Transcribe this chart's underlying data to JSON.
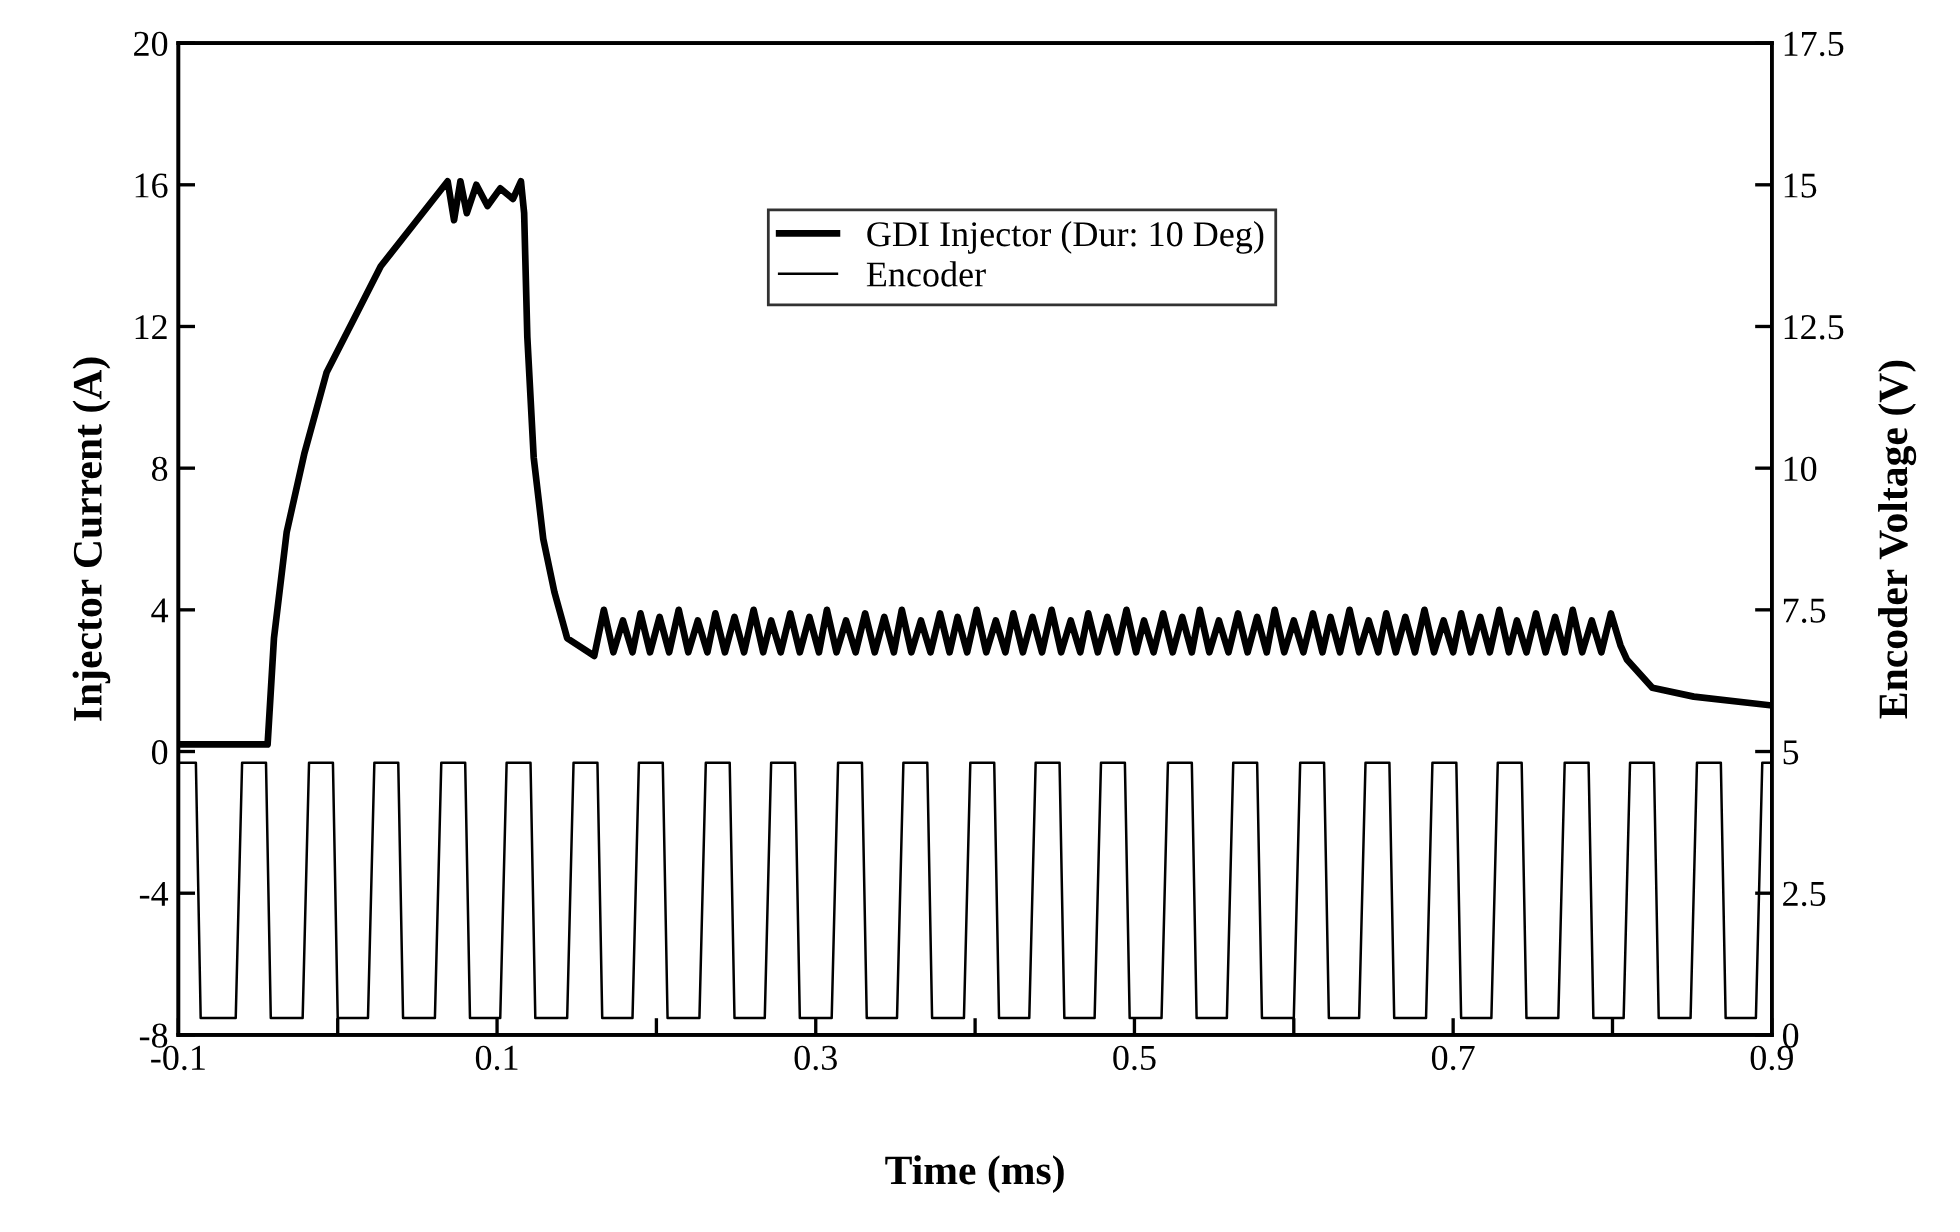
{
  "chart_data": {
    "type": "line",
    "xlabel": "Time (ms)",
    "ylabel": "Injector Current (A)",
    "y2label": "Encoder Voltage (V)",
    "xlim": [
      -0.1,
      0.9
    ],
    "xticks": [
      -0.1,
      {
        "value": 0,
        "label": null
      },
      0.1,
      {
        "value": 0.2,
        "label": null
      },
      0.3,
      {
        "value": 0.4,
        "label": null
      },
      0.5,
      {
        "value": 0.6,
        "label": null
      },
      0.7,
      {
        "value": 0.8,
        "label": null
      },
      0.9
    ],
    "ylim": [
      -8,
      20
    ],
    "yticks": [
      -8,
      -4,
      0,
      4,
      8,
      12,
      16,
      20
    ],
    "y2lim": [
      0,
      17.5
    ],
    "y2ticks": [
      0,
      2.5,
      5,
      7.5,
      10,
      12.5,
      15,
      17.5
    ],
    "grid": false,
    "legend": "top right",
    "line_style": "solid",
    "marker": "none",
    "series": [
      {
        "name": "GDI Injector (Dur: 10 Deg)",
        "color": "#000000",
        "axis": "y",
        "x": [
          -0.1,
          -0.044,
          -0.04,
          -0.032,
          -0.021,
          -0.007,
          0.01,
          0.027,
          0.048,
          0.069,
          0.073,
          0.077,
          0.081,
          0.087,
          0.094,
          0.102,
          0.11,
          0.115,
          0.117,
          0.119,
          0.123,
          0.129,
          0.136,
          0.144,
          0.161,
          0.167,
          0.173,
          0.179,
          0.185,
          0.19,
          0.196,
          0.202,
          0.208,
          0.214,
          0.22,
          0.226,
          0.232,
          0.237,
          0.243,
          0.249,
          0.255,
          0.261,
          0.267,
          0.272,
          0.278,
          0.284,
          0.29,
          0.296,
          0.302,
          0.307,
          0.313,
          0.319,
          0.325,
          0.331,
          0.337,
          0.343,
          0.349,
          0.354,
          0.36,
          0.366,
          0.372,
          0.378,
          0.384,
          0.389,
          0.395,
          0.401,
          0.407,
          0.413,
          0.419,
          0.424,
          0.43,
          0.436,
          0.442,
          0.448,
          0.454,
          0.46,
          0.466,
          0.471,
          0.477,
          0.483,
          0.489,
          0.495,
          0.501,
          0.506,
          0.512,
          0.518,
          0.524,
          0.53,
          0.536,
          0.541,
          0.547,
          0.553,
          0.559,
          0.565,
          0.571,
          0.577,
          0.583,
          0.588,
          0.594,
          0.6,
          0.606,
          0.612,
          0.618,
          0.623,
          0.629,
          0.635,
          0.641,
          0.647,
          0.653,
          0.658,
          0.664,
          0.67,
          0.676,
          0.682,
          0.688,
          0.694,
          0.7,
          0.705,
          0.711,
          0.717,
          0.723,
          0.729,
          0.735,
          0.74,
          0.746,
          0.752,
          0.758,
          0.764,
          0.77,
          0.775,
          0.781,
          0.787,
          0.793,
          0.799,
          0.805,
          0.809,
          0.825,
          0.851,
          0.9
        ],
        "values": [
          0.2,
          0.2,
          3.2,
          6.2,
          8.4,
          10.7,
          12.2,
          13.7,
          14.9,
          16.1,
          15.0,
          16.1,
          15.2,
          16.0,
          15.4,
          15.9,
          15.6,
          16.1,
          15.2,
          11.7,
          8.3,
          6.0,
          4.5,
          3.2,
          2.7,
          4.0,
          2.8,
          3.7,
          2.8,
          3.9,
          2.8,
          3.8,
          2.8,
          4.0,
          2.8,
          3.7,
          2.8,
          3.9,
          2.8,
          3.8,
          2.8,
          4.0,
          2.8,
          3.7,
          2.8,
          3.9,
          2.8,
          3.8,
          2.8,
          4.0,
          2.8,
          3.7,
          2.8,
          3.9,
          2.8,
          3.8,
          2.8,
          4.0,
          2.8,
          3.7,
          2.8,
          3.9,
          2.8,
          3.8,
          2.8,
          4.0,
          2.8,
          3.7,
          2.8,
          3.9,
          2.8,
          3.8,
          2.8,
          4.0,
          2.8,
          3.7,
          2.8,
          3.9,
          2.8,
          3.8,
          2.8,
          4.0,
          2.8,
          3.7,
          2.8,
          3.9,
          2.8,
          3.8,
          2.8,
          4.0,
          2.8,
          3.7,
          2.8,
          3.9,
          2.8,
          3.8,
          2.8,
          4.0,
          2.8,
          3.7,
          2.8,
          3.9,
          2.8,
          3.8,
          2.8,
          4.0,
          2.8,
          3.7,
          2.8,
          3.9,
          2.8,
          3.8,
          2.8,
          4.0,
          2.8,
          3.7,
          2.8,
          3.9,
          2.8,
          3.8,
          2.8,
          4.0,
          2.8,
          3.7,
          2.8,
          3.9,
          2.8,
          3.8,
          2.8,
          4.0,
          2.8,
          3.7,
          2.8,
          3.9,
          3.0,
          2.6,
          1.8,
          1.55,
          1.3
        ]
      },
      {
        "name": "Encoder",
        "color": "#000000",
        "axis": "y2",
        "x": [
          -0.1,
          -0.089,
          -0.086,
          -0.064,
          -0.06,
          -0.045,
          -0.042,
          -0.022,
          -0.018,
          -0.003,
          0.0,
          0.019,
          0.023,
          0.038,
          0.041,
          0.061,
          0.065,
          0.08,
          0.083,
          0.102,
          0.106,
          0.121,
          0.124,
          0.144,
          0.148,
          0.163,
          0.166,
          0.185,
          0.189,
          0.204,
          0.207,
          0.227,
          0.231,
          0.246,
          0.249,
          0.268,
          0.272,
          0.287,
          0.29,
          0.31,
          0.314,
          0.329,
          0.332,
          0.351,
          0.355,
          0.37,
          0.373,
          0.393,
          0.397,
          0.412,
          0.415,
          0.434,
          0.438,
          0.453,
          0.456,
          0.475,
          0.479,
          0.494,
          0.497,
          0.517,
          0.521,
          0.536,
          0.539,
          0.558,
          0.562,
          0.577,
          0.58,
          0.6,
          0.604,
          0.619,
          0.622,
          0.641,
          0.645,
          0.66,
          0.663,
          0.683,
          0.687,
          0.702,
          0.705,
          0.724,
          0.728,
          0.743,
          0.746,
          0.766,
          0.77,
          0.785,
          0.788,
          0.807,
          0.811,
          0.826,
          0.829,
          0.849,
          0.853,
          0.868,
          0.871,
          0.89,
          0.894,
          0.9
        ],
        "values": [
          4.8,
          4.8,
          0.3,
          0.3,
          4.8,
          4.8,
          0.3,
          0.3,
          4.8,
          4.8,
          0.3,
          0.3,
          4.8,
          4.8,
          0.3,
          0.3,
          4.8,
          4.8,
          0.3,
          0.3,
          4.8,
          4.8,
          0.3,
          0.3,
          4.8,
          4.8,
          0.3,
          0.3,
          4.8,
          4.8,
          0.3,
          0.3,
          4.8,
          4.8,
          0.3,
          0.3,
          4.8,
          4.8,
          0.3,
          0.3,
          4.8,
          4.8,
          0.3,
          0.3,
          4.8,
          4.8,
          0.3,
          0.3,
          4.8,
          4.8,
          0.3,
          0.3,
          4.8,
          4.8,
          0.3,
          0.3,
          4.8,
          4.8,
          0.3,
          0.3,
          4.8,
          4.8,
          0.3,
          0.3,
          4.8,
          4.8,
          0.3,
          0.3,
          4.8,
          4.8,
          0.3,
          0.3,
          4.8,
          4.8,
          0.3,
          0.3,
          4.8,
          4.8,
          0.3,
          0.3,
          4.8,
          4.8,
          0.3,
          0.3,
          4.8,
          4.8,
          0.3,
          0.3,
          4.8,
          4.8,
          0.3,
          0.3,
          4.8,
          4.8,
          0.3,
          0.3,
          4.8,
          4.8
        ]
      }
    ]
  }
}
